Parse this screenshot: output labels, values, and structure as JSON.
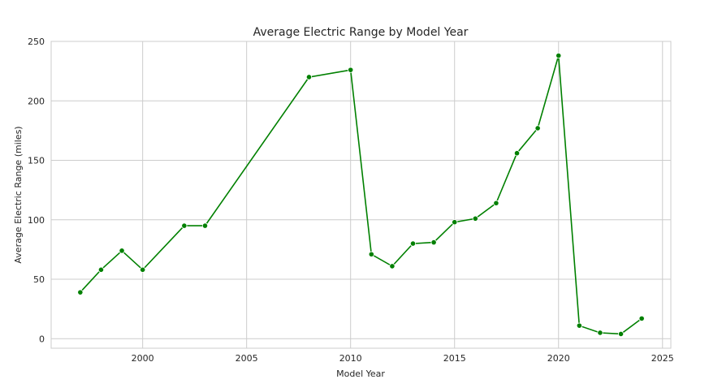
{
  "chart_data": {
    "type": "line",
    "title": "Average Electric Range by Model Year",
    "xlabel": "Model Year",
    "ylabel": "Average Electric Range (miles)",
    "xlim": [
      1995.6,
      2025.4
    ],
    "ylim": [
      -8,
      250
    ],
    "x_ticks": [
      2000,
      2005,
      2010,
      2015,
      2020,
      2025
    ],
    "y_ticks": [
      0,
      50,
      100,
      150,
      200,
      250
    ],
    "grid": true,
    "legend": "none",
    "line_color": "#008000",
    "series": [
      {
        "x": [
          1997,
          1998,
          1999,
          2000,
          2002,
          2003,
          2008,
          2010,
          2011,
          2012,
          2013,
          2014,
          2015,
          2016,
          2017,
          2018,
          2019,
          2020,
          2021,
          2022,
          2023,
          2024
        ],
        "y": [
          39,
          58,
          74,
          58,
          95,
          95,
          220,
          226,
          71,
          61,
          80,
          81,
          98,
          101,
          114,
          156,
          177,
          238,
          11,
          5,
          4,
          17
        ]
      }
    ]
  }
}
